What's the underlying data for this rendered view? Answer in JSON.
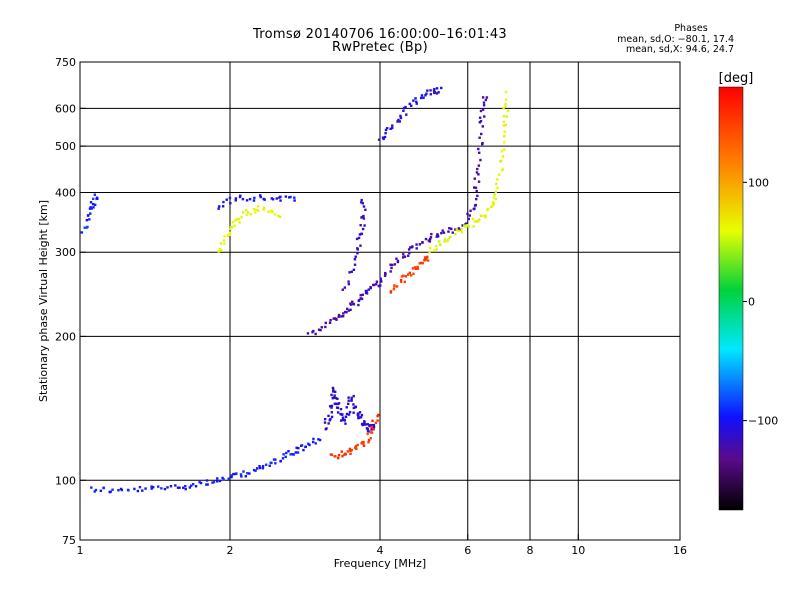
{
  "header": {
    "title": "Tromsø 20140706 16:00:00–16:01:43",
    "subtitle": "RwPretec (Bp)",
    "phases_title": "Phases",
    "phases_o": "mean, sd,O: −80.1, 17.4",
    "phases_x": "mean, sd,X:  94.6, 24.7"
  },
  "colorbar": {
    "label": "[deg]",
    "ticks": [
      {
        "value": 100,
        "label": "100"
      },
      {
        "value": 0,
        "label": "0"
      },
      {
        "value": -100,
        "label": "−100"
      }
    ],
    "range": [
      -175,
      180
    ]
  },
  "chart_data": {
    "type": "scatter",
    "title": "Tromsø 20140706 16:00:00–16:01:43",
    "subtitle": "RwPretec (Bp)",
    "xlabel": "Frequency [MHz]",
    "ylabel": "Stationary phase Virtual Height [km]",
    "xscale": "log",
    "yscale": "log",
    "xlim": [
      1,
      16
    ],
    "ylim": [
      75,
      750
    ],
    "x_ticks": [
      1,
      2,
      4,
      6,
      8,
      10,
      16
    ],
    "x_tick_labels": [
      "1",
      "2",
      "4",
      "6",
      "8",
      "10",
      "16"
    ],
    "y_ticks": [
      75,
      100,
      200,
      300,
      400,
      500,
      600,
      750
    ],
    "y_tick_labels": [
      "75",
      "100",
      "200",
      "300",
      "400",
      "500",
      "600",
      "750"
    ],
    "grid": true,
    "color_by": "phase (deg)",
    "traces": [
      {
        "phase": -95,
        "points": [
          [
            1.05,
            96
          ],
          [
            1.2,
            95
          ],
          [
            1.4,
            96
          ],
          [
            1.6,
            97
          ],
          [
            1.8,
            99
          ],
          [
            2.0,
            101
          ],
          [
            2.2,
            104
          ],
          [
            2.4,
            108
          ],
          [
            2.6,
            113
          ],
          [
            2.8,
            117
          ],
          [
            3.0,
            122
          ]
        ]
      },
      {
        "phase": -110,
        "points": [
          [
            3.1,
            128
          ],
          [
            3.2,
            140
          ],
          [
            3.25,
            155
          ],
          [
            3.3,
            140
          ],
          [
            3.4,
            132
          ],
          [
            3.5,
            150
          ],
          [
            3.6,
            138
          ],
          [
            3.7,
            132
          ],
          [
            3.8,
            128
          ],
          [
            3.9,
            130
          ]
        ]
      },
      {
        "phase": 150,
        "points": [
          [
            3.2,
            112
          ],
          [
            3.4,
            114
          ],
          [
            3.6,
            117
          ],
          [
            3.8,
            122
          ],
          [
            3.95,
            138
          ]
        ]
      },
      {
        "phase": -120,
        "points": [
          [
            2.9,
            200
          ],
          [
            3.2,
            215
          ],
          [
            3.4,
            225
          ],
          [
            3.6,
            235
          ],
          [
            3.8,
            250
          ],
          [
            4.0,
            260
          ],
          [
            4.3,
            285
          ],
          [
            4.6,
            305
          ],
          [
            5.0,
            320
          ],
          [
            5.4,
            330
          ],
          [
            5.9,
            340
          ],
          [
            6.2,
            380
          ],
          [
            6.3,
            450
          ],
          [
            6.4,
            560
          ],
          [
            6.5,
            640
          ]
        ]
      },
      {
        "phase": 150,
        "points": [
          [
            4.2,
            250
          ],
          [
            4.5,
            265
          ],
          [
            4.8,
            280
          ],
          [
            5.0,
            295
          ]
        ]
      },
      {
        "phase": 60,
        "points": [
          [
            5.0,
            300
          ],
          [
            5.5,
            320
          ],
          [
            6.0,
            340
          ],
          [
            6.4,
            355
          ],
          [
            6.8,
            380
          ],
          [
            7.0,
            450
          ],
          [
            7.1,
            550
          ],
          [
            7.2,
            640
          ]
        ]
      },
      {
        "phase": -115,
        "points": [
          [
            3.4,
            250
          ],
          [
            3.6,
            300
          ],
          [
            3.7,
            340
          ],
          [
            3.7,
            385
          ]
        ]
      },
      {
        "phase": -105,
        "points": [
          [
            4.0,
            510
          ],
          [
            4.3,
            560
          ],
          [
            4.6,
            610
          ],
          [
            5.0,
            650
          ],
          [
            5.3,
            655
          ]
        ]
      },
      {
        "phase": -100,
        "points": [
          [
            1.9,
            375
          ],
          [
            2.1,
            390
          ],
          [
            2.4,
            390
          ],
          [
            2.7,
            385
          ]
        ]
      },
      {
        "phase": 60,
        "points": [
          [
            1.9,
            300
          ],
          [
            2.0,
            330
          ],
          [
            2.1,
            360
          ],
          [
            2.3,
            370
          ],
          [
            2.5,
            360
          ]
        ]
      },
      {
        "phase": -90,
        "points": [
          [
            1.02,
            330
          ],
          [
            1.05,
            370
          ],
          [
            1.08,
            395
          ]
        ]
      }
    ]
  }
}
